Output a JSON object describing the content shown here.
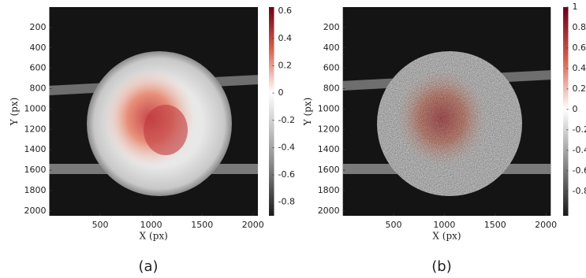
{
  "chart_data": [
    {
      "type": "heatmap",
      "caption": "(a)",
      "xlabel": "X (px)",
      "ylabel": "Y (px)",
      "xlim": [
        0,
        2048
      ],
      "xticks": [
        500,
        1000,
        1500,
        2000
      ],
      "ylim": [
        0,
        2048
      ],
      "y_inverted": true,
      "yticks": [
        200,
        400,
        600,
        800,
        1000,
        1200,
        1400,
        1600,
        1800,
        2000
      ],
      "colorbar": {
        "clim": [
          -0.9,
          0.63
        ],
        "ticks": [
          0.6,
          0.4,
          0.2,
          0,
          -0.2,
          -0.4,
          -0.6,
          -0.8
        ]
      }
    },
    {
      "type": "heatmap",
      "caption": "(b)",
      "xlabel": "X (px)",
      "ylabel": "Y (px)",
      "xlim": [
        0,
        2048
      ],
      "xticks": [
        500,
        1000,
        1500,
        2000
      ],
      "ylim": [
        0,
        2048
      ],
      "y_inverted": true,
      "yticks": [
        200,
        400,
        600,
        800,
        1000,
        1200,
        1400,
        1600,
        1800,
        2000
      ],
      "colorbar": {
        "clim": [
          -1.04,
          1
        ],
        "ticks": [
          1,
          0.8,
          0.6,
          0.4,
          0.2,
          0,
          -0.2,
          -0.4,
          -0.6,
          -0.8
        ]
      }
    }
  ]
}
